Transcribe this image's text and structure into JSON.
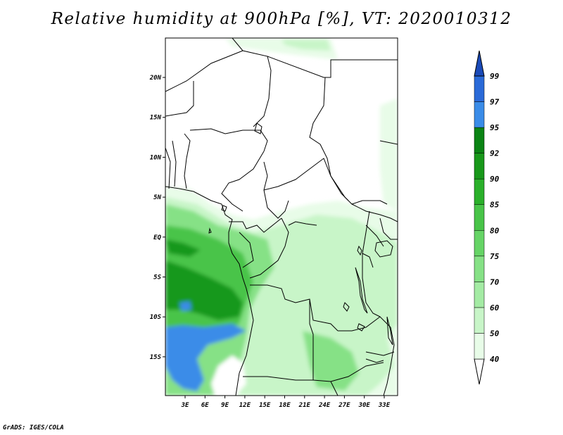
{
  "title": "Relative humidity at 900hPa [%], VT: 2020010312",
  "credit": "GrADS: IGES/COLA",
  "map": {
    "lon_labels": [
      "3E",
      "6E",
      "9E",
      "12E",
      "15E",
      "18E",
      "21E",
      "24E",
      "27E",
      "30E",
      "33E"
    ],
    "lat_labels": [
      "20N",
      "15N",
      "10N",
      "5N",
      "EQ",
      "5S",
      "10S",
      "15S"
    ]
  },
  "colorbar": {
    "levels": [
      "40",
      "50",
      "60",
      "70",
      "75",
      "80",
      "85",
      "90",
      "92",
      "95",
      "97",
      "99"
    ],
    "colors": [
      "#ffffff",
      "#e8fce8",
      "#c8f5c8",
      "#a4eba4",
      "#86e186",
      "#66d466",
      "#48c448",
      "#2ab02a",
      "#18981a",
      "#0b8414",
      "#3a8ce8",
      "#2a6ad8",
      "#1a4ab8"
    ]
  },
  "shading_colors": {
    "light": "#e8fce8",
    "pale": "#c8f5c8",
    "mid": "#86e186",
    "strong": "#48c448",
    "dark": "#18981a",
    "blue": "#3a8ce8"
  }
}
